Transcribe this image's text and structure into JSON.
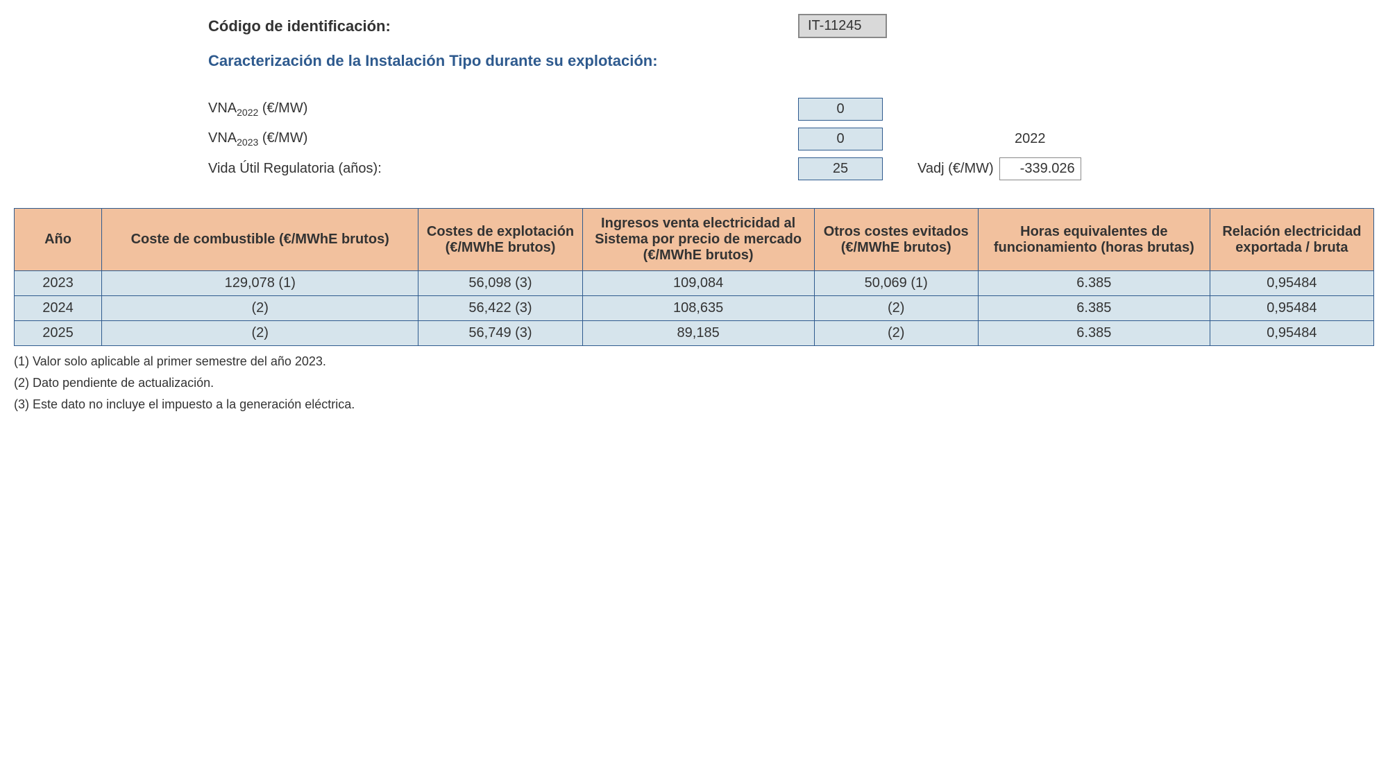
{
  "header": {
    "code_label": "Código de identificación:",
    "code_value": "IT-11245",
    "section_title": "Caracterización de la Instalación Tipo durante su explotación:",
    "vna2022_label_prefix": "VNA",
    "vna2022_sub": "2022",
    "vna2022_unit": " (€/MW)",
    "vna2022_value": "0",
    "vna2023_label_prefix": "VNA",
    "vna2023_sub": "2023",
    "vna2023_unit": " (€/MW)",
    "vna2023_value": "0",
    "year_right": "2022",
    "vida_label": "Vida Útil Regulatoria (años):",
    "vida_value": "25",
    "vadj_label": "Vadj (€/MW)",
    "vadj_value": "-339.026"
  },
  "table": {
    "columns": [
      "Año",
      "Coste de combustible (€/MWhE brutos)",
      "Costes de explotación (€/MWhE brutos)",
      "Ingresos venta electricidad al Sistema por precio de mercado (€/MWhE brutos)",
      "Otros costes evitados (€/MWhE brutos)",
      "Horas equivalentes de funcionamiento (horas brutas)",
      "Relación electricidad exportada / bruta"
    ],
    "col_widths": [
      "90px",
      "360px",
      "180px",
      "260px",
      "180px",
      "260px",
      "180px"
    ],
    "rows": [
      [
        "2023",
        "129,078 (1)",
        "56,098 (3)",
        "109,084",
        "50,069 (1)",
        "6.385",
        "0,95484"
      ],
      [
        "2024",
        "(2)",
        "56,422 (3)",
        "108,635",
        "(2)",
        "6.385",
        "0,95484"
      ],
      [
        "2025",
        "(2)",
        "56,749 (3)",
        "89,185",
        "(2)",
        "6.385",
        "0,95484"
      ]
    ],
    "header_bg": "#f2c19e",
    "cell_bg": "#d6e4ec",
    "border_color": "#2e5a8e"
  },
  "footnotes": [
    "(1) Valor solo aplicable al primer semestre del año 2023.",
    "(2) Dato pendiente de actualización.",
    "(3) Este dato no incluye el impuesto a la generación eléctrica."
  ]
}
